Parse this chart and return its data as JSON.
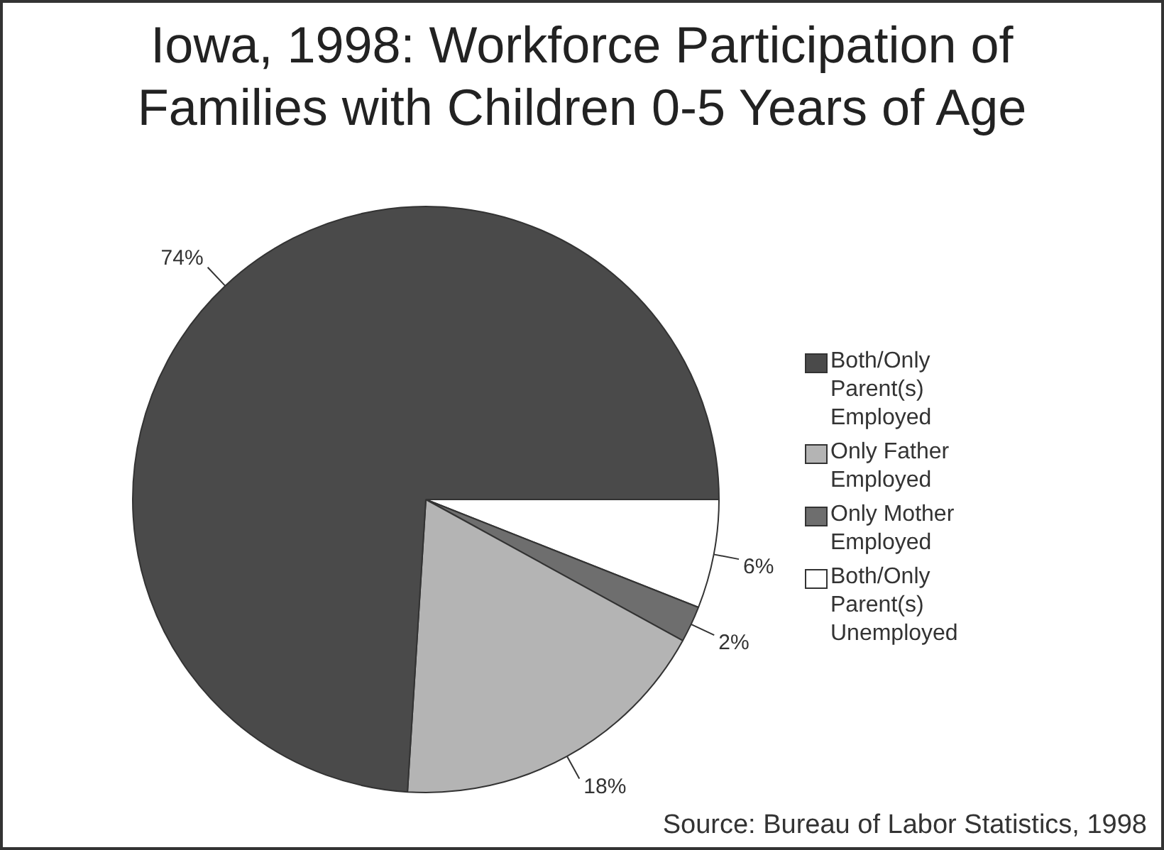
{
  "chart_data": {
    "type": "pie",
    "title": "Iowa, 1998:  Workforce Participation of Families with Children 0-5 Years of Age",
    "categories": [
      "Both/Only Parent(s) Employed",
      "Only Father Employed",
      "Only Mother Employed",
      "Both/Only Parent(s) Unemployed"
    ],
    "values": [
      74,
      18,
      2,
      6
    ],
    "colors": [
      "#4a4a4a",
      "#b4b4b4",
      "#6e6e6e",
      "#ffffff"
    ],
    "value_labels": [
      "74%",
      "18%",
      "2%",
      "6%"
    ],
    "legend": "right",
    "annotations": [
      "Source: Bureau of Labor Statistics, 1998"
    ]
  }
}
